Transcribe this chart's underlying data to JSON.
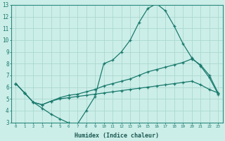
{
  "xlabel": "Humidex (Indice chaleur)",
  "bg_color": "#cceee8",
  "grid_color": "#aad8d0",
  "line_color": "#1a7a6e",
  "spine_color": "#2a8a7e",
  "xlim": [
    -0.5,
    23.5
  ],
  "ylim": [
    3,
    13
  ],
  "xticks": [
    0,
    1,
    2,
    3,
    4,
    5,
    6,
    7,
    8,
    9,
    10,
    11,
    12,
    13,
    14,
    15,
    16,
    17,
    18,
    19,
    20,
    21,
    22,
    23
  ],
  "yticks": [
    3,
    4,
    5,
    6,
    7,
    8,
    9,
    10,
    11,
    12,
    13
  ],
  "line1_x": [
    0,
    1,
    2,
    3,
    4,
    5,
    6,
    7,
    8,
    9,
    10,
    11,
    12,
    13,
    14,
    15,
    16,
    17,
    18,
    19,
    20,
    21,
    22,
    23
  ],
  "line1_y": [
    6.3,
    5.5,
    4.7,
    4.2,
    3.7,
    3.3,
    2.95,
    2.85,
    4.0,
    5.2,
    8.0,
    8.3,
    9.0,
    10.0,
    11.5,
    12.7,
    13.1,
    12.5,
    11.2,
    9.7,
    8.5,
    7.8,
    6.8,
    5.4
  ],
  "line2_x": [
    0,
    1,
    2,
    3,
    4,
    5,
    6,
    7,
    8,
    9,
    10,
    11,
    12,
    13,
    14,
    15,
    16,
    17,
    18,
    19,
    20,
    21,
    22,
    23
  ],
  "line2_y": [
    6.3,
    5.5,
    4.7,
    4.5,
    4.8,
    5.1,
    5.3,
    5.4,
    5.6,
    5.8,
    6.1,
    6.3,
    6.5,
    6.7,
    7.0,
    7.3,
    7.5,
    7.7,
    7.9,
    8.1,
    8.4,
    7.9,
    7.0,
    5.5
  ],
  "line3_x": [
    0,
    1,
    2,
    3,
    4,
    5,
    6,
    7,
    8,
    9,
    10,
    11,
    12,
    13,
    14,
    15,
    16,
    17,
    18,
    19,
    20,
    21,
    22,
    23
  ],
  "line3_y": [
    6.3,
    5.5,
    4.7,
    4.5,
    4.8,
    5.0,
    5.1,
    5.2,
    5.3,
    5.4,
    5.5,
    5.6,
    5.7,
    5.8,
    5.9,
    6.0,
    6.1,
    6.2,
    6.3,
    6.4,
    6.5,
    6.2,
    5.8,
    5.5
  ]
}
